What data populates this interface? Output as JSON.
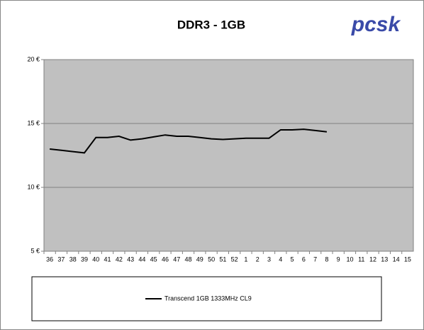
{
  "chart_data": {
    "type": "line",
    "title": "DDR3 - 1GB",
    "logo": "pcsk",
    "categories": [
      "36",
      "37",
      "38",
      "39",
      "40",
      "41",
      "42",
      "43",
      "44",
      "45",
      "46",
      "47",
      "48",
      "49",
      "50",
      "51",
      "52",
      "1",
      "2",
      "3",
      "4",
      "5",
      "6",
      "7",
      "8",
      "9",
      "10",
      "11",
      "12",
      "13",
      "14",
      "15"
    ],
    "series": [
      {
        "name": "Transcend 1GB 1333MHz CL9",
        "color": "#000000",
        "values": [
          13.0,
          12.9,
          12.8,
          12.7,
          13.9,
          13.9,
          14.0,
          13.7,
          13.8,
          13.95,
          14.1,
          14.0,
          14.0,
          13.9,
          13.8,
          13.75,
          13.8,
          13.85,
          13.85,
          13.85,
          14.5,
          14.5,
          14.55,
          14.45,
          14.35,
          null,
          null,
          null,
          null,
          null,
          null,
          null
        ]
      }
    ],
    "ylim": [
      5,
      20
    ],
    "yticks": [
      {
        "value": 5,
        "label": "5 €"
      },
      {
        "value": 10,
        "label": "10 €"
      },
      {
        "value": 15,
        "label": "15 €"
      },
      {
        "value": 20,
        "label": "20 €"
      }
    ],
    "grid": true,
    "plot_color": "#c0c0c0"
  }
}
